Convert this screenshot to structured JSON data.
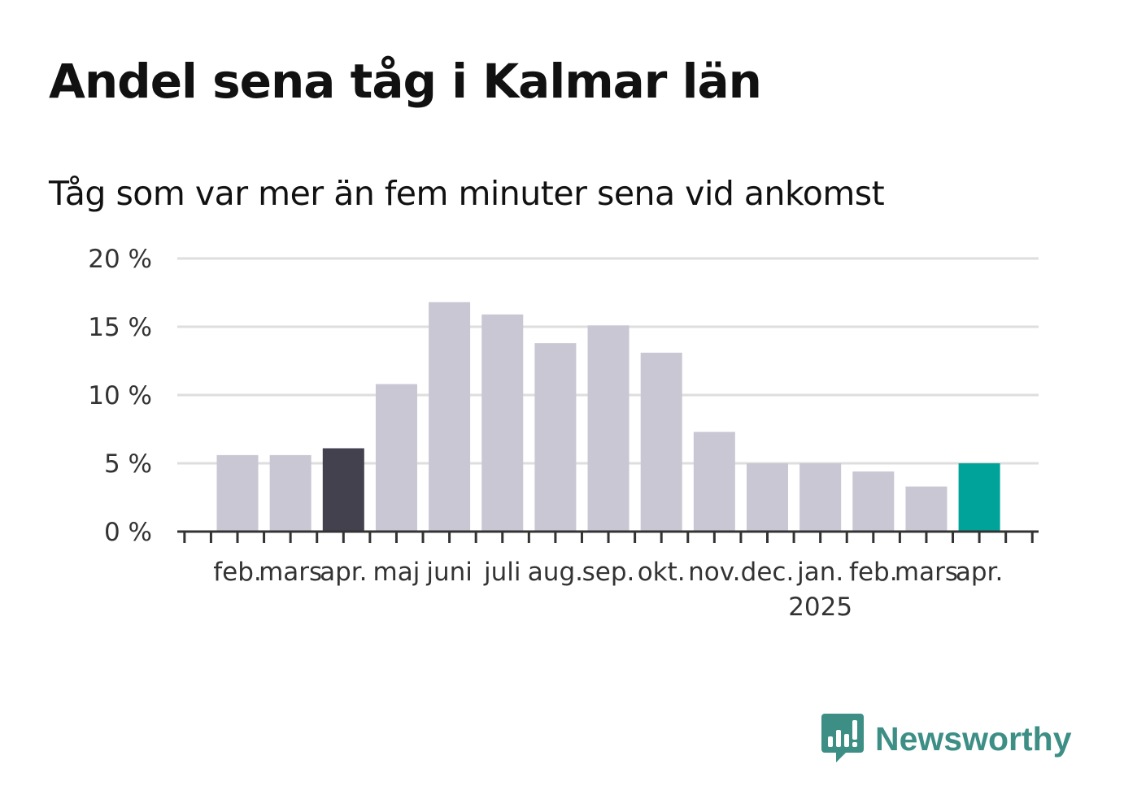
{
  "title": "Andel sena tåg i Kalmar län",
  "subtitle": "Tåg som var mer än fem minuter sena vid ankomst",
  "brand": {
    "name": "Newsworthy",
    "icon": "newsworthy-logo-icon",
    "color": "#3d8f86"
  },
  "chart_data": {
    "type": "bar",
    "categories": [
      "feb.",
      "mars",
      "apr.",
      "maj",
      "juni",
      "juli",
      "aug.",
      "sep.",
      "okt.",
      "nov.",
      "dec.",
      "jan.",
      "feb.",
      "mars",
      "apr."
    ],
    "year_labels": [
      {
        "category_index": 11,
        "label": "2025"
      }
    ],
    "values": [
      5.6,
      5.6,
      6.1,
      10.8,
      16.8,
      15.9,
      13.8,
      15.1,
      13.1,
      7.3,
      5.0,
      5.0,
      4.4,
      3.3,
      5.0
    ],
    "y_ticks": [
      {
        "value": 0,
        "label": "0 %"
      },
      {
        "value": 5,
        "label": "5 %"
      },
      {
        "value": 10,
        "label": "10 %"
      },
      {
        "value": 15,
        "label": "15 %"
      },
      {
        "value": 20,
        "label": "20 %"
      }
    ],
    "ylim": [
      0,
      20
    ],
    "xlabel": "",
    "ylabel": "",
    "grid": true,
    "colors": {
      "default": "#c8c7d3",
      "highlight_previous_year": "#42414d",
      "highlight_latest": "#00a39a",
      "grid": "#dedede",
      "axis": "#333333"
    },
    "highlights": {
      "previous_year_index": 2,
      "latest_index": 14
    }
  }
}
